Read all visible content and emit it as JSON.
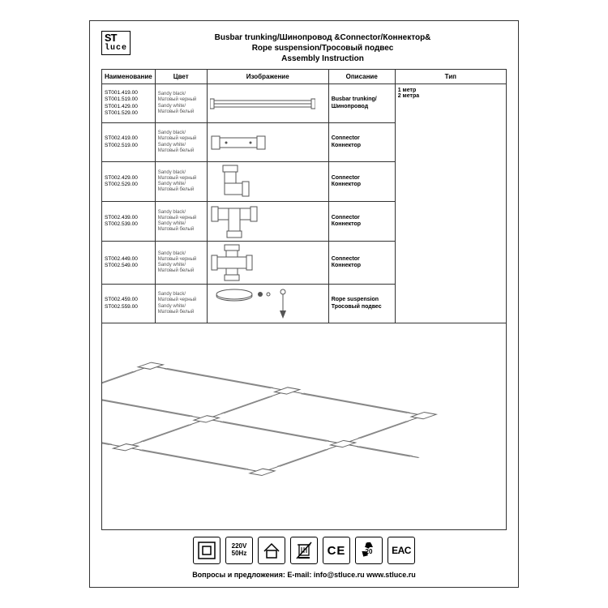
{
  "logo": {
    "line1": "ST",
    "line2": "luce"
  },
  "title": {
    "line1": "Busbar trunking/Шинопровод &Connector/Коннектор&",
    "line2": "Rope suspension/Тросовый подвес",
    "line3": "Assembly Instruction"
  },
  "headers": {
    "name": "Наименование",
    "color": "Цвет",
    "image": "Изображение",
    "desc": "Описание",
    "type": "Тип"
  },
  "color_text": "Sandy black/\nМатовый черный\nSandy white/\nМатовый белый",
  "rows": [
    {
      "names": "ST001.419.00\nST001.519.00\nST001.429.00\nST001.529.00",
      "desc": "Busbar trunking/\nШинопровод",
      "type": "1 метр\n2 метра",
      "shape": "rail"
    },
    {
      "names": "ST002.419.00\nST002.519.00",
      "desc": "Connector\nКоннектор",
      "shape": "straight"
    },
    {
      "names": "ST002.429.00\nST002.529.00",
      "desc": "Connector\nКоннектор",
      "shape": "angle"
    },
    {
      "names": "ST002.439.00\nST002.539.00",
      "desc": "Connector\nКоннектор",
      "shape": "tee"
    },
    {
      "names": "ST002.449.00\nST002.549.00",
      "desc": "Connector\nКоннектор",
      "shape": "cross"
    },
    {
      "names": "ST002.459.00\nST002.559.00",
      "desc": "Rope suspension\nТросовый подвес",
      "shape": "rope"
    }
  ],
  "cert_icons": [
    {
      "kind": "class2"
    },
    {
      "kind": "volt",
      "l1": "220V",
      "l2": "50Hz"
    },
    {
      "kind": "indoor"
    },
    {
      "kind": "nobin"
    },
    {
      "kind": "ce",
      "text": "CE"
    },
    {
      "kind": "recycle",
      "text": "20"
    },
    {
      "kind": "eac",
      "text": "EAC"
    }
  ],
  "footer": "Вопросы и предложения: E-mail: info@stluce.ru www.stluce.ru",
  "styling": {
    "page_border": "#333333",
    "text_color": "#000000",
    "muted": "#555555",
    "stroke": "#444444",
    "light_stroke": "#888888",
    "font_sizes": {
      "title": 10,
      "th": 8,
      "td": 7,
      "footer": 9
    }
  }
}
